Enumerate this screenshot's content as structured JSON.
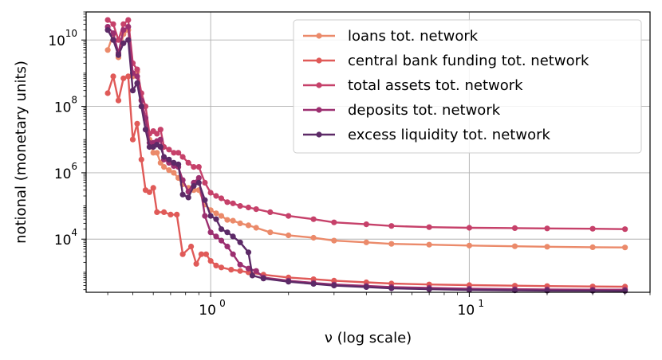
{
  "chart_data": {
    "type": "line",
    "title": "",
    "xlabel": "ν (log scale)",
    "ylabel": "notional (monetary units)",
    "xscale": "log",
    "yscale": "log",
    "xlim": [
      0.33,
      50
    ],
    "ylim": [
      250,
      70000000000
    ],
    "x_ticks": [
      {
        "value": 1,
        "label": "10",
        "exp": "0"
      },
      {
        "value": 10,
        "label": "10",
        "exp": "1"
      }
    ],
    "y_ticks": [
      {
        "value": 10000,
        "label": "10",
        "exp": "4"
      },
      {
        "value": 1000000,
        "label": "10",
        "exp": "6"
      },
      {
        "value": 100000000,
        "label": "10",
        "exp": "8"
      },
      {
        "value": 10000000000,
        "label": "10",
        "exp": "10"
      }
    ],
    "grid": true,
    "legend_position": "top-right",
    "series": [
      {
        "name": "loans tot. network",
        "color": "#eb8a6a",
        "points": [
          [
            0.4,
            5000000000.0
          ],
          [
            0.42,
            15000000000.0
          ],
          [
            0.44,
            3000000000.0
          ],
          [
            0.46,
            15000000000.0
          ],
          [
            0.48,
            20000000000.0
          ],
          [
            0.5,
            800000000.0
          ],
          [
            0.52,
            1100000000.0
          ],
          [
            0.54,
            160000000.0
          ],
          [
            0.56,
            40000000.0
          ],
          [
            0.58,
            10000000.0
          ],
          [
            0.6,
            4000000.0
          ],
          [
            0.62,
            4000000.0
          ],
          [
            0.64,
            2000000.0
          ],
          [
            0.66,
            1500000.0
          ],
          [
            0.69,
            1200000.0
          ],
          [
            0.72,
            1000000.0
          ],
          [
            0.75,
            700000.0
          ],
          [
            0.78,
            450000.0
          ],
          [
            0.82,
            350000.0
          ],
          [
            0.86,
            300000.0
          ],
          [
            0.9,
            300000.0
          ],
          [
            0.95,
            110000.0
          ],
          [
            1.0,
            75000.0
          ],
          [
            1.05,
            60000.0
          ],
          [
            1.1,
            50000.0
          ],
          [
            1.16,
            38000.0
          ],
          [
            1.22,
            36000.0
          ],
          [
            1.3,
            30000.0
          ],
          [
            1.4,
            26000.0
          ],
          [
            1.5,
            22000.0
          ],
          [
            1.7,
            16000.0
          ],
          [
            2.0,
            13000.0
          ],
          [
            2.5,
            11000.0
          ],
          [
            3.0,
            9000.0
          ],
          [
            4.0,
            8000.0
          ],
          [
            5.0,
            7200.0
          ],
          [
            7.0,
            6800.0
          ],
          [
            10.0,
            6400.0
          ],
          [
            15.0,
            6100.0
          ],
          [
            20.0,
            5900.0
          ],
          [
            30.0,
            5700.0
          ],
          [
            40.0,
            5600.0
          ]
        ]
      },
      {
        "name": "central bank funding tot. network",
        "color": "#e05a58",
        "points": [
          [
            0.4,
            250000000.0
          ],
          [
            0.42,
            800000000.0
          ],
          [
            0.44,
            150000000.0
          ],
          [
            0.46,
            700000000.0
          ],
          [
            0.48,
            800000000.0
          ],
          [
            0.5,
            10000000.0
          ],
          [
            0.52,
            30000000.0
          ],
          [
            0.54,
            2500000.0
          ],
          [
            0.56,
            300000.0
          ],
          [
            0.58,
            260000.0
          ],
          [
            0.6,
            350000.0
          ],
          [
            0.62,
            65000.0
          ],
          [
            0.66,
            65000.0
          ],
          [
            0.7,
            55000.0
          ],
          [
            0.74,
            55000.0
          ],
          [
            0.78,
            3500.0
          ],
          [
            0.84,
            6000.0
          ],
          [
            0.88,
            1800.0
          ],
          [
            0.92,
            3500.0
          ],
          [
            0.96,
            3500.0
          ],
          [
            1.0,
            2200.0
          ],
          [
            1.05,
            1600.0
          ],
          [
            1.1,
            1400.0
          ],
          [
            1.2,
            1200.0
          ],
          [
            1.3,
            1100.0
          ],
          [
            1.4,
            1000.0
          ],
          [
            1.6,
            850
          ],
          [
            2.0,
            700
          ],
          [
            2.5,
            620
          ],
          [
            3.0,
            560
          ],
          [
            4.0,
            500
          ],
          [
            5.0,
            460
          ],
          [
            7.0,
            430
          ],
          [
            10.0,
            410
          ],
          [
            15.0,
            395
          ],
          [
            20.0,
            385
          ],
          [
            30.0,
            375
          ],
          [
            40.0,
            370
          ]
        ]
      },
      {
        "name": "total assets tot. network",
        "color": "#c6416a",
        "points": [
          [
            0.4,
            40000000000.0
          ],
          [
            0.42,
            30000000000.0
          ],
          [
            0.44,
            10000000000.0
          ],
          [
            0.46,
            30000000000.0
          ],
          [
            0.48,
            40000000000.0
          ],
          [
            0.5,
            2000000000.0
          ],
          [
            0.52,
            1300000000.0
          ],
          [
            0.54,
            250000000.0
          ],
          [
            0.56,
            100000000.0
          ],
          [
            0.58,
            15000000.0
          ],
          [
            0.6,
            18000000.0
          ],
          [
            0.62,
            15000000.0
          ],
          [
            0.64,
            20000000.0
          ],
          [
            0.66,
            6000000.0
          ],
          [
            0.69,
            5000000.0
          ],
          [
            0.72,
            4000000.0
          ],
          [
            0.75,
            4000000.0
          ],
          [
            0.78,
            3000000.0
          ],
          [
            0.82,
            2000000.0
          ],
          [
            0.86,
            1500000.0
          ],
          [
            0.9,
            1500000.0
          ],
          [
            0.95,
            500000.0
          ],
          [
            1.0,
            250000.0
          ],
          [
            1.05,
            200000.0
          ],
          [
            1.1,
            170000.0
          ],
          [
            1.16,
            130000.0
          ],
          [
            1.22,
            120000.0
          ],
          [
            1.3,
            100000.0
          ],
          [
            1.4,
            90000.0
          ],
          [
            1.5,
            80000.0
          ],
          [
            1.7,
            65000.0
          ],
          [
            2.0,
            50000.0
          ],
          [
            2.5,
            40000.0
          ],
          [
            3.0,
            32000.0
          ],
          [
            4.0,
            28000.0
          ],
          [
            5.0,
            25000.0
          ],
          [
            7.0,
            23000.0
          ],
          [
            10.0,
            22000.0
          ],
          [
            15.0,
            21500.0
          ],
          [
            20.0,
            21000.0
          ],
          [
            30.0,
            20500.0
          ],
          [
            40.0,
            20000.0
          ]
        ]
      },
      {
        "name": "deposits tot. network",
        "color": "#9c2f70",
        "points": [
          [
            0.4,
            25000000000.0
          ],
          [
            0.42,
            16000000000.0
          ],
          [
            0.44,
            4000000000.0
          ],
          [
            0.46,
            20000000000.0
          ],
          [
            0.48,
            25000000000.0
          ],
          [
            0.5,
            1000000000.0
          ],
          [
            0.52,
            800000000.0
          ],
          [
            0.54,
            150000000.0
          ],
          [
            0.56,
            45000000.0
          ],
          [
            0.58,
            8000000.0
          ],
          [
            0.6,
            8000000.0
          ],
          [
            0.62,
            9000000.0
          ],
          [
            0.64,
            10000000.0
          ],
          [
            0.66,
            2500000.0
          ],
          [
            0.69,
            2000000.0
          ],
          [
            0.72,
            1600000.0
          ],
          [
            0.75,
            1500000.0
          ],
          [
            0.78,
            600000.0
          ],
          [
            0.82,
            270000.0
          ],
          [
            0.86,
            500000.0
          ],
          [
            0.9,
            700000.0
          ],
          [
            0.95,
            50000.0
          ],
          [
            1.0,
            16000.0
          ],
          [
            1.05,
            12000.0
          ],
          [
            1.1,
            9000.0
          ],
          [
            1.16,
            6000.0
          ],
          [
            1.22,
            3500.0
          ],
          [
            1.3,
            1700.0
          ],
          [
            1.4,
            1300.0
          ],
          [
            1.5,
            1100.0
          ],
          [
            1.6,
            700
          ],
          [
            2.0,
            560
          ],
          [
            2.5,
            480
          ],
          [
            3.0,
            430
          ],
          [
            4.0,
            390
          ],
          [
            5.0,
            360
          ],
          [
            7.0,
            340
          ],
          [
            10.0,
            320
          ],
          [
            15.0,
            310
          ],
          [
            20.0,
            305
          ],
          [
            30.0,
            300
          ],
          [
            40.0,
            300
          ]
        ]
      },
      {
        "name": "excess liquidity tot. network",
        "color": "#5c2a67",
        "points": [
          [
            0.4,
            20000000000.0
          ],
          [
            0.42,
            10000000000.0
          ],
          [
            0.44,
            3500000000.0
          ],
          [
            0.46,
            8000000000.0
          ],
          [
            0.48,
            10000000000.0
          ],
          [
            0.5,
            300000000.0
          ],
          [
            0.52,
            500000000.0
          ],
          [
            0.54,
            100000000.0
          ],
          [
            0.56,
            20000000.0
          ],
          [
            0.58,
            6000000.0
          ],
          [
            0.6,
            6000000.0
          ],
          [
            0.62,
            7000000.0
          ],
          [
            0.64,
            6000000.0
          ],
          [
            0.66,
            3000000.0
          ],
          [
            0.69,
            2500000.0
          ],
          [
            0.72,
            2000000.0
          ],
          [
            0.75,
            1800000.0
          ],
          [
            0.78,
            220000.0
          ],
          [
            0.82,
            180000.0
          ],
          [
            0.86,
            400000.0
          ],
          [
            0.9,
            500000.0
          ],
          [
            0.95,
            150000.0
          ],
          [
            1.0,
            50000.0
          ],
          [
            1.05,
            40000.0
          ],
          [
            1.1,
            20000.0
          ],
          [
            1.16,
            16000.0
          ],
          [
            1.22,
            12000.0
          ],
          [
            1.3,
            8000.0
          ],
          [
            1.4,
            4000.0
          ],
          [
            1.45,
            800
          ],
          [
            1.6,
            650
          ],
          [
            2.0,
            520
          ],
          [
            2.5,
            450
          ],
          [
            3.0,
            400
          ],
          [
            4.0,
            360
          ],
          [
            5.0,
            330
          ],
          [
            7.0,
            310
          ],
          [
            10.0,
            295
          ],
          [
            15.0,
            285
          ],
          [
            20.0,
            280
          ],
          [
            30.0,
            278
          ],
          [
            40.0,
            275
          ]
        ]
      }
    ]
  }
}
